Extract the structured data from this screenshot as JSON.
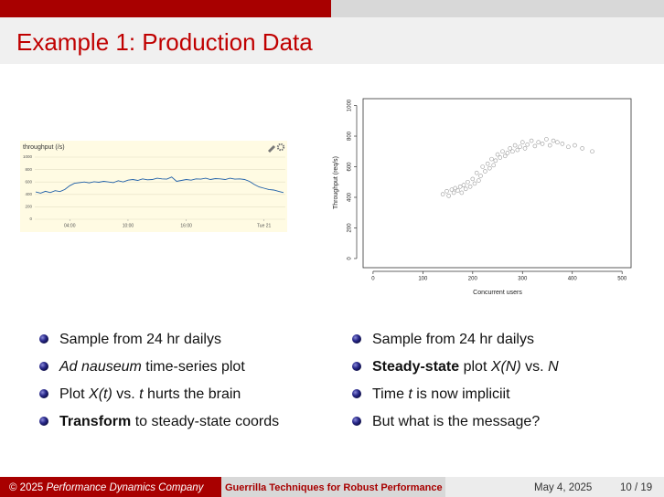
{
  "slide": {
    "title": "Example 1: Production Data",
    "left_bullets": [
      [
        "Sample from 24 hr dailys"
      ],
      [
        {
          "text": "Ad nauseum",
          "style": "italic"
        },
        " time-series plot"
      ],
      [
        "Plot ",
        {
          "text": "X(t)",
          "style": "italic"
        },
        " vs. ",
        {
          "text": "t",
          "style": "italic"
        },
        " hurts the brain"
      ],
      [
        {
          "text": "Transform",
          "style": "bold"
        },
        " to steady-state coords"
      ]
    ],
    "right_bullets": [
      [
        "Sample from 24 hr dailys"
      ],
      [
        {
          "text": "Steady-state",
          "style": "bold"
        },
        " plot ",
        {
          "text": "X(N)",
          "style": "italic"
        },
        " vs. ",
        {
          "text": "N",
          "style": "italic"
        }
      ],
      [
        "Time ",
        {
          "text": "t",
          "style": "italic"
        },
        " is now impliciit"
      ],
      [
        "But what is the message?"
      ]
    ],
    "footer": {
      "author_prefix": "© 2025 ",
      "author": "Performance Dynamics Company",
      "talk": "Guerrilla Techniques for Robust Performance",
      "date": "May 4, 2025",
      "page": "10 / 19"
    }
  },
  "chart_data": [
    {
      "type": "line",
      "title": "throughput (/s)",
      "color": "#1f5fa8",
      "grid": true,
      "x": [
        0.5,
        1,
        1.5,
        2,
        2.5,
        3,
        3.5,
        4,
        4.5,
        5,
        5.5,
        6,
        6.5,
        7,
        7.5,
        8,
        8.5,
        9,
        9.5,
        10,
        10.5,
        11,
        11.5,
        12,
        12.5,
        13,
        13.5,
        14,
        14.5,
        15,
        15.5,
        16,
        16.5,
        17,
        17.5,
        18,
        18.5,
        19,
        19.5,
        20,
        20.5,
        21,
        21.5,
        22,
        22.5,
        23,
        23.5,
        24,
        24.5,
        25,
        25.5,
        26
      ],
      "values": [
        440,
        420,
        450,
        430,
        460,
        445,
        480,
        540,
        580,
        590,
        600,
        585,
        605,
        595,
        610,
        600,
        590,
        620,
        600,
        630,
        640,
        625,
        650,
        635,
        640,
        660,
        650,
        645,
        680,
        610,
        625,
        640,
        630,
        650,
        645,
        660,
        640,
        655,
        650,
        640,
        660,
        645,
        650,
        640,
        610,
        560,
        520,
        500,
        480,
        470,
        450,
        430
      ],
      "xlim": [
        0.4,
        26.2
      ],
      "xticks": [
        {
          "value": 4,
          "label": "04:00"
        },
        {
          "value": 10,
          "label": "10:00"
        },
        {
          "value": 16,
          "label": "16:00"
        },
        {
          "value": 24,
          "label": "Tue 21"
        }
      ],
      "ylim": [
        0,
        1000
      ],
      "yticks": [
        0,
        200,
        400,
        600,
        800,
        1000
      ]
    },
    {
      "type": "scatter",
      "x_label": "Concurrent users",
      "y_label": "Throughput (req/s)",
      "color": "#9a9a9a",
      "x": [
        140,
        148,
        152,
        158,
        162,
        165,
        170,
        175,
        178,
        182,
        186,
        190,
        195,
        200,
        204,
        208,
        212,
        216,
        220,
        225,
        230,
        234,
        238,
        242,
        246,
        250,
        255,
        260,
        265,
        270,
        275,
        280,
        285,
        290,
        295,
        300,
        305,
        310,
        318,
        325,
        332,
        340,
        348,
        355,
        362,
        370,
        380,
        392,
        405,
        420,
        440
      ],
      "values": [
        420,
        440,
        410,
        450,
        430,
        460,
        445,
        470,
        430,
        480,
        455,
        500,
        470,
        520,
        490,
        560,
        510,
        540,
        600,
        570,
        620,
        590,
        650,
        610,
        640,
        680,
        660,
        700,
        670,
        690,
        720,
        700,
        740,
        710,
        730,
        760,
        720,
        745,
        770,
        735,
        760,
        750,
        780,
        740,
        770,
        760,
        750,
        730,
        740,
        720,
        700
      ],
      "xlim": [
        -20,
        518
      ],
      "xticks": [
        0,
        100,
        200,
        300,
        400,
        500
      ],
      "ylim": [
        -60,
        1045
      ],
      "yticks": [
        0,
        200,
        400,
        600,
        800,
        1000
      ]
    }
  ]
}
